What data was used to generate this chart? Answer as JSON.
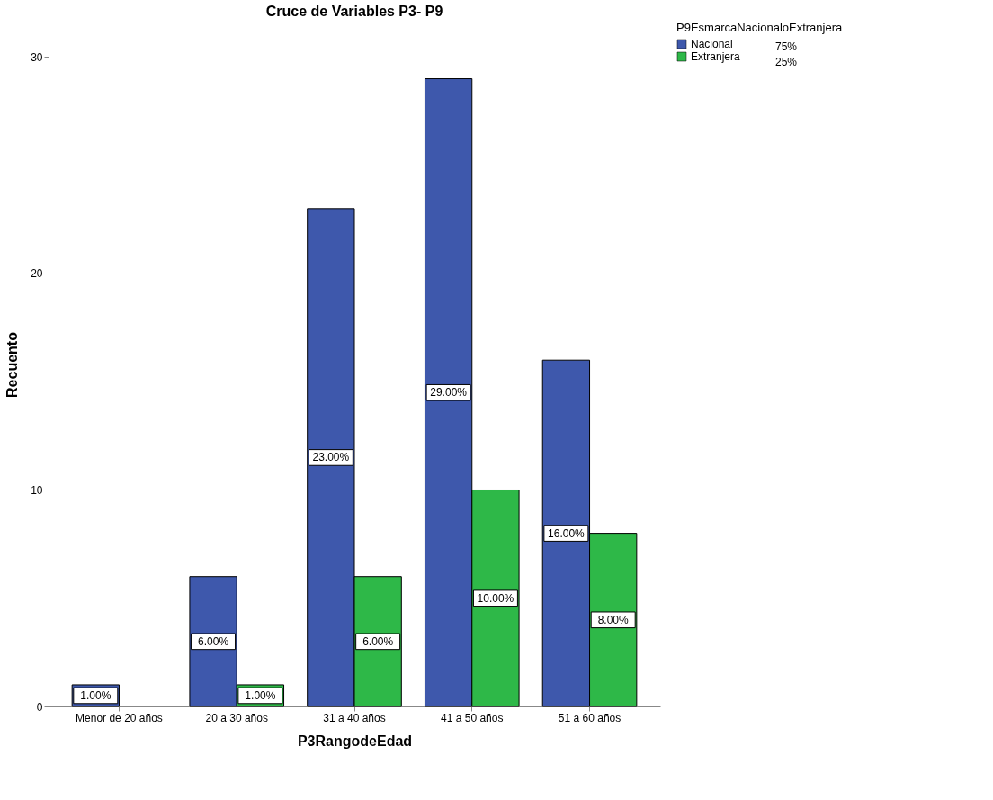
{
  "chart_data": {
    "type": "bar",
    "title": "Cruce de Variables P3- P9",
    "xlabel": "P3RangodeEdad",
    "ylabel": "Recuento",
    "legend_title": "P9EsmarcaNacionaloExtranjera",
    "categories": [
      "Menor de 20 años",
      "20 a 30 años",
      "31 a 40 años",
      "41 a 50 años",
      "51 a 60 años"
    ],
    "series": [
      {
        "name": "Nacional",
        "color": "#3e58ac",
        "values": [
          1,
          6,
          23,
          29,
          16
        ],
        "value_labels": [
          "1.00%",
          "6.00%",
          "23.00%",
          "29.00%",
          "16.00%"
        ]
      },
      {
        "name": "Extranjera",
        "color": "#2eb848",
        "values": [
          null,
          1,
          6,
          10,
          8
        ],
        "value_labels": [
          null,
          "1.00%",
          "6.00%",
          "10.00%",
          "8.00%"
        ]
      }
    ],
    "annotations": [
      "75%",
      "25%"
    ],
    "ylim": [
      0,
      31.6
    ],
    "yticks": [
      0,
      10,
      20,
      30
    ],
    "grid": false,
    "legend": "top right"
  }
}
